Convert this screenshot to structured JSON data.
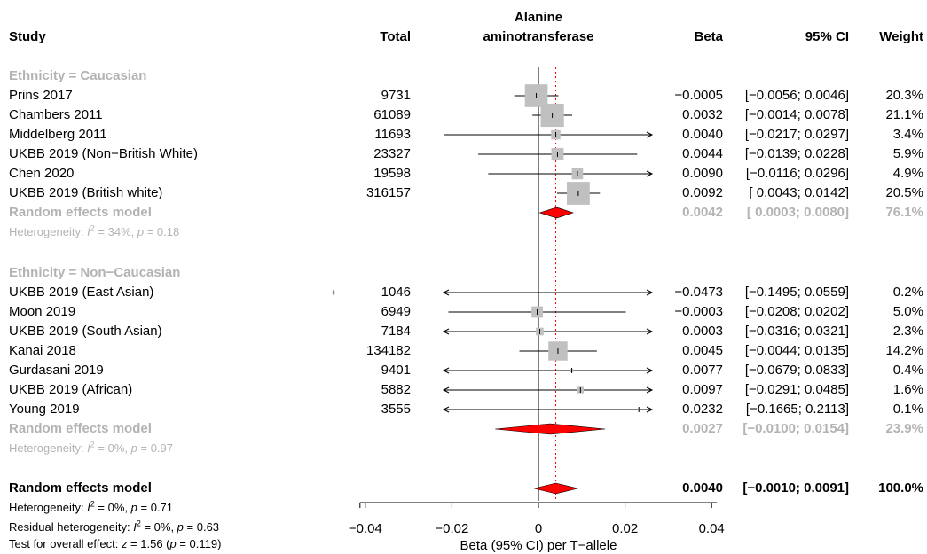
{
  "header": {
    "study": "Study",
    "total": "Total",
    "outcome_line1": "Alanine",
    "outcome_line2": "aminotransferase",
    "beta": "Beta",
    "ci": "95% CI",
    "weight": "Weight"
  },
  "groups": [
    {
      "label": "Ethnicity = Caucasian",
      "rows": [
        {
          "study": "Prins 2017",
          "total": "9731",
          "beta_text": "−0.0005",
          "ci_text": "[−0.0056; 0.0046]",
          "weight_text": "20.3%"
        },
        {
          "study": "Chambers 2011",
          "total": "61089",
          "beta_text": "0.0032",
          "ci_text": "[−0.0014; 0.0078]",
          "weight_text": "21.1%"
        },
        {
          "study": "Middelberg 2011",
          "total": "11693",
          "beta_text": "0.0040",
          "ci_text": "[−0.0217; 0.0297]",
          "weight_text": "3.4%"
        },
        {
          "study": "UKBB 2019 (Non−British White)",
          "total": "23327",
          "beta_text": "0.0044",
          "ci_text": "[−0.0139; 0.0228]",
          "weight_text": "5.9%"
        },
        {
          "study": "Chen 2020",
          "total": "19598",
          "beta_text": "0.0090",
          "ci_text": "[−0.0116; 0.0296]",
          "weight_text": "4.9%"
        },
        {
          "study": "UKBB 2019 (British white)",
          "total": "316157",
          "beta_text": "0.0092",
          "ci_text": "[ 0.0043; 0.0142]",
          "weight_text": "20.5%"
        }
      ],
      "summary": {
        "label": "Random effects model",
        "beta_text": "0.0042",
        "ci_text": "[ 0.0003; 0.0080]",
        "weight_text": "76.1%"
      },
      "heterogeneity": {
        "prefix": "Heterogeneity: ",
        "sym": "I",
        "sup": "2",
        "mid": " = 34%, ",
        "p": "p",
        "end": " = 0.18"
      }
    },
    {
      "label": "Ethnicity = Non−Caucasian",
      "rows": [
        {
          "study": "UKBB 2019 (East Asian)",
          "total": "1046",
          "beta_text": "−0.0473",
          "ci_text": "[−0.1495; 0.0559]",
          "weight_text": "0.2%"
        },
        {
          "study": "Moon 2019",
          "total": "6949",
          "beta_text": "−0.0003",
          "ci_text": "[−0.0208; 0.0202]",
          "weight_text": "5.0%"
        },
        {
          "study": "UKBB 2019 (South Asian)",
          "total": "7184",
          "beta_text": "0.0003",
          "ci_text": "[−0.0316; 0.0321]",
          "weight_text": "2.3%"
        },
        {
          "study": "Kanai 2018",
          "total": "134182",
          "beta_text": "0.0045",
          "ci_text": "[−0.0044; 0.0135]",
          "weight_text": "14.2%"
        },
        {
          "study": "Gurdasani 2019",
          "total": "9401",
          "beta_text": "0.0077",
          "ci_text": "[−0.0679; 0.0833]",
          "weight_text": "0.4%"
        },
        {
          "study": "UKBB 2019 (African)",
          "total": "5882",
          "beta_text": "0.0097",
          "ci_text": "[−0.0291; 0.0485]",
          "weight_text": "1.6%"
        },
        {
          "study": "Young 2019",
          "total": "3555",
          "beta_text": "0.0232",
          "ci_text": "[−0.1665; 0.2113]",
          "weight_text": "0.1%"
        }
      ],
      "summary": {
        "label": "Random effects model",
        "beta_text": "0.0027",
        "ci_text": "[−0.0100; 0.0154]",
        "weight_text": "23.9%"
      },
      "heterogeneity": {
        "prefix": "Heterogeneity: ",
        "sym": "I",
        "sup": "2",
        "mid": " = 0%, ",
        "p": "p",
        "end": " = 0.97"
      }
    }
  ],
  "overall": {
    "label": "Random effects model",
    "beta_text": "0.0040",
    "ci_text": "[−0.0010; 0.0091]",
    "weight_text": "100.0%",
    "heterogeneity": {
      "prefix": "Heterogeneity: ",
      "sym": "I",
      "sup": "2",
      "mid": " = 0%, ",
      "p": "p",
      "end": " = 0.71"
    },
    "residual": {
      "prefix": "Residual heterogeneity: ",
      "sym": "I",
      "sup": "2",
      "mid": " = 0%, ",
      "p": "p",
      "end": " = 0.63"
    },
    "test": {
      "prefix": "Test for overall effect: ",
      "z": "z",
      "mid": " = 1.56 (",
      "p": "p",
      "end": " = 0.119)"
    }
  },
  "chart_data": {
    "type": "forest",
    "xlabel": "Beta (95% CI) per T−allele",
    "xlim": [
      -0.05,
      0.05
    ],
    "ticks": [
      -0.04,
      -0.02,
      0,
      0.02,
      0.04
    ],
    "tick_labels": [
      "−0.04",
      "−0.02",
      "0",
      "0.02",
      "0.04"
    ],
    "reference_line": 0,
    "overall_line": 0.004,
    "colors": {
      "summary_fill": "#ff0000",
      "box_fill": "#c0c0c0",
      "group_text": "#b3b3b3",
      "overall_line": "#ff0000"
    },
    "studies": [
      {
        "group": "Caucasian",
        "study": "Prins 2017",
        "beta": -0.0005,
        "lower": -0.0056,
        "upper": 0.0046,
        "weight": 20.3
      },
      {
        "group": "Caucasian",
        "study": "Chambers 2011",
        "beta": 0.0032,
        "lower": -0.0014,
        "upper": 0.0078,
        "weight": 21.1
      },
      {
        "group": "Caucasian",
        "study": "Middelberg 2011",
        "beta": 0.004,
        "lower": -0.0217,
        "upper": 0.0297,
        "weight": 3.4
      },
      {
        "group": "Caucasian",
        "study": "UKBB 2019 (Non−British White)",
        "beta": 0.0044,
        "lower": -0.0139,
        "upper": 0.0228,
        "weight": 5.9
      },
      {
        "group": "Caucasian",
        "study": "Chen 2020",
        "beta": 0.009,
        "lower": -0.0116,
        "upper": 0.0296,
        "weight": 4.9
      },
      {
        "group": "Caucasian",
        "study": "UKBB 2019 (British white)",
        "beta": 0.0092,
        "lower": 0.0043,
        "upper": 0.0142,
        "weight": 20.5
      },
      {
        "group": "Non−Caucasian",
        "study": "UKBB 2019 (East Asian)",
        "beta": -0.0473,
        "lower": -0.1495,
        "upper": 0.0559,
        "weight": 0.2
      },
      {
        "group": "Non−Caucasian",
        "study": "Moon 2019",
        "beta": -0.0003,
        "lower": -0.0208,
        "upper": 0.0202,
        "weight": 5.0
      },
      {
        "group": "Non−Caucasian",
        "study": "UKBB 2019 (South Asian)",
        "beta": 0.0003,
        "lower": -0.0316,
        "upper": 0.0321,
        "weight": 2.3
      },
      {
        "group": "Non−Caucasian",
        "study": "Kanai 2018",
        "beta": 0.0045,
        "lower": -0.0044,
        "upper": 0.0135,
        "weight": 14.2
      },
      {
        "group": "Non−Caucasian",
        "study": "Gurdasani 2019",
        "beta": 0.0077,
        "lower": -0.0679,
        "upper": 0.0833,
        "weight": 0.4
      },
      {
        "group": "Non−Caucasian",
        "study": "UKBB 2019 (African)",
        "beta": 0.0097,
        "lower": -0.0291,
        "upper": 0.0485,
        "weight": 1.6
      },
      {
        "group": "Non−Caucasian",
        "study": "Young 2019",
        "beta": 0.0232,
        "lower": -0.1665,
        "upper": 0.2113,
        "weight": 0.1
      }
    ],
    "summaries": [
      {
        "group": "Caucasian",
        "beta": 0.0042,
        "lower": 0.0003,
        "upper": 0.008,
        "weight": 76.1
      },
      {
        "group": "Non−Caucasian",
        "beta": 0.0027,
        "lower": -0.01,
        "upper": 0.0154,
        "weight": 23.9
      },
      {
        "group": "Overall",
        "beta": 0.004,
        "lower": -0.001,
        "upper": 0.0091,
        "weight": 100.0
      }
    ]
  }
}
